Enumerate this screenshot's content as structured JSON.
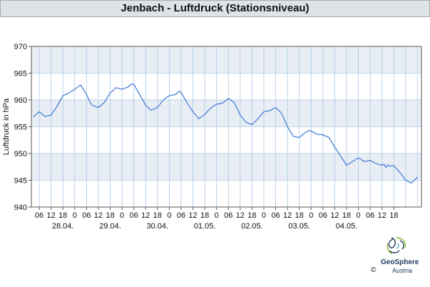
{
  "title": "Jenbach - Luftdruck (Stationsniveau)",
  "logo": {
    "name": "GeoSphere",
    "sub": "Austria",
    "copyright": "©"
  },
  "chart_data": {
    "type": "line",
    "title": "Jenbach - Luftdruck (Stationsniveau)",
    "ylabel": "Luftdruck in hPa",
    "xlabel": "",
    "ylim": [
      940,
      970
    ],
    "yticks": [
      940,
      945,
      950,
      955,
      960,
      965,
      970
    ],
    "xlim_hours": [
      -20,
      3.5
    ],
    "grid": true,
    "colors": {
      "line": "#4a80d8",
      "band": "#e9eef5",
      "grid": "#a8c8e6",
      "title_bg": "#dfe2e6"
    },
    "day_labels": [
      {
        "label": "28.04.",
        "hour": 12
      },
      {
        "label": "29.04.",
        "hour": 36
      },
      {
        "label": "30.04.",
        "hour": 60
      },
      {
        "label": "01.05.",
        "hour": 84
      },
      {
        "label": "02.05.",
        "hour": 108
      },
      {
        "label": "03.05.",
        "hour": 132
      },
      {
        "label": "04.05.",
        "hour": 156
      }
    ],
    "hour_ticks": [
      "06",
      "12",
      "18",
      "0",
      "06",
      "12",
      "18",
      "0",
      "06",
      "12",
      "18",
      "0",
      "06",
      "12",
      "18",
      "0",
      "06",
      "12",
      "18",
      "0",
      "06",
      "12",
      "18",
      "0",
      "06",
      "12",
      "18",
      "0",
      "06",
      "12",
      "18"
    ],
    "series": [
      {
        "x": [
          -21,
          -18,
          -15,
          -12,
          -9,
          -6,
          -3,
          0,
          3,
          6,
          8,
          9,
          12,
          15,
          18,
          21,
          24,
          27,
          29,
          30,
          33,
          36,
          38,
          39,
          42,
          45,
          48,
          51,
          53,
          54,
          57,
          60,
          63,
          66,
          69,
          72,
          75,
          78,
          81,
          84,
          87,
          90,
          93,
          96,
          99,
          102,
          105,
          108,
          111,
          114,
          117,
          119,
          120,
          123,
          126,
          129,
          132,
          135,
          138,
          141,
          144,
          147,
          150,
          153,
          156,
          157,
          158,
          159,
          160,
          162,
          165,
          168,
          171,
          174
        ],
        "y": [
          956.8,
          957.8,
          956.9,
          957.2,
          958.8,
          960.8,
          961.3,
          962.0,
          962.8,
          961.0,
          959.4,
          959.0,
          958.6,
          959.5,
          961.3,
          962.3,
          962.0,
          962.4,
          963.0,
          962.9,
          961.0,
          959.0,
          958.3,
          958.1,
          958.6,
          960.0,
          960.8,
          961.0,
          961.6,
          961.4,
          959.5,
          957.8,
          956.5,
          957.3,
          958.5,
          959.2,
          959.4,
          960.3,
          959.5,
          957.2,
          955.8,
          955.4,
          956.5,
          957.8,
          958.0,
          958.6,
          957.5,
          955.0,
          953.2,
          953.0,
          953.9,
          954.3,
          954.2,
          953.6,
          953.5,
          953.0,
          951.2,
          949.5,
          947.8,
          948.5,
          949.2,
          948.5,
          948.7,
          948.1,
          947.8,
          948.0,
          947.4,
          947.9,
          947.6,
          947.7,
          946.5,
          945.0,
          944.5,
          945.6
        ]
      }
    ]
  }
}
